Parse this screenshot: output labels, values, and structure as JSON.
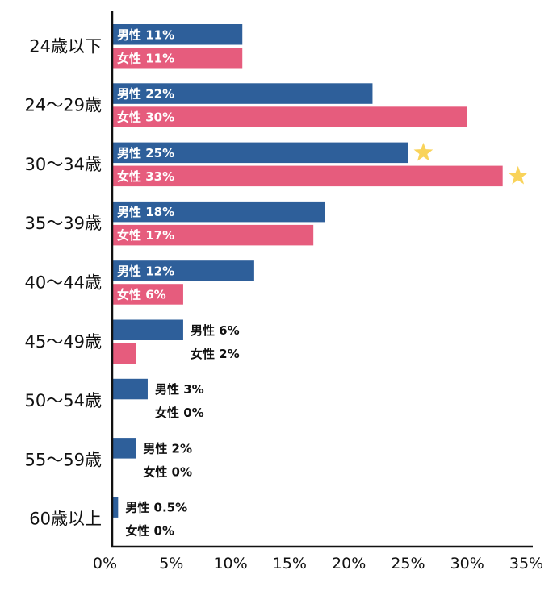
{
  "chart_data": {
    "type": "bar",
    "orientation": "horizontal",
    "categories": [
      "24歳以下",
      "24〜29歳",
      "30〜34歳",
      "35〜39歳",
      "40〜44歳",
      "45〜49歳",
      "50〜54歳",
      "55〜59歳",
      "60歳以上"
    ],
    "series": [
      {
        "name": "男性",
        "color": "#2e5f9a",
        "values": [
          11,
          22,
          25,
          18,
          12,
          6,
          3,
          2,
          0.5
        ],
        "labels": [
          "男性 11%",
          "男性 22%",
          "男性 25%",
          "男性 18%",
          "男性 12%",
          "男性 6%",
          "男性 3%",
          "男性 2%",
          "男性 0.5%"
        ]
      },
      {
        "name": "女性",
        "color": "#e65c7d",
        "values": [
          11,
          30,
          33,
          17,
          6,
          2,
          0,
          0,
          0
        ],
        "labels": [
          "女性 11%",
          "女性 30%",
          "女性 33%",
          "女性 17%",
          "女性 6%",
          "女性 2%",
          "女性 0%",
          "女性 0%",
          "女性 0%"
        ]
      }
    ],
    "x_ticks": [
      "0%",
      "5%",
      "10%",
      "15%",
      "20%",
      "25%",
      "30%",
      "35%"
    ],
    "xlim": [
      0,
      35
    ],
    "highlight": {
      "category": "30〜34歳",
      "icon": "star-icon",
      "color": "#f9d35a"
    },
    "grid": false,
    "legend": "none",
    "title": "",
    "xlabel": "",
    "ylabel": ""
  }
}
